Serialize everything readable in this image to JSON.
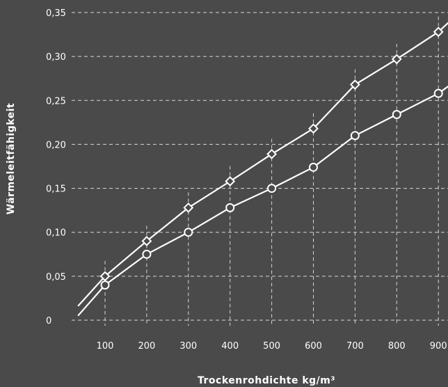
{
  "chart_data": {
    "type": "line",
    "title": "",
    "xlabel": "Trockenrohdichte kg/m³",
    "ylabel": "Wärmeleitfähigkeit",
    "x_ticks": [
      {
        "value": 100,
        "label": "100"
      },
      {
        "value": 200,
        "label": "200"
      },
      {
        "value": 300,
        "label": "300"
      },
      {
        "value": 400,
        "label": "400"
      },
      {
        "value": 500,
        "label": "500"
      },
      {
        "value": 600,
        "label": "600"
      },
      {
        "value": 700,
        "label": "700"
      },
      {
        "value": 800,
        "label": "800"
      },
      {
        "value": 900,
        "label": "900"
      }
    ],
    "y_ticks": [
      {
        "value": 0,
        "label": "0"
      },
      {
        "value": 0.05,
        "label": "0,05"
      },
      {
        "value": 0.1,
        "label": "0,10"
      },
      {
        "value": 0.15,
        "label": "0,15"
      },
      {
        "value": 0.2,
        "label": "0,20"
      },
      {
        "value": 0.25,
        "label": "0,25"
      },
      {
        "value": 0.3,
        "label": "0,30"
      },
      {
        "value": 0.35,
        "label": "0,35"
      }
    ],
    "ylim": [
      0,
      0.35
    ],
    "grid": true,
    "legend": "none",
    "colors": {
      "background": "#4a4a4b",
      "line": "#ffffff",
      "grid": "#d8d8d8",
      "marker_fill": "#4a4a4b"
    },
    "series": [
      {
        "marker": "diamond",
        "x": [
          100,
          200,
          300,
          400,
          500,
          600,
          700,
          800,
          900
        ],
        "values": [
          0.05,
          0.09,
          0.128,
          0.158,
          0.189,
          0.218,
          0.268,
          0.297,
          0.328
        ],
        "line_start": {
          "x": 35,
          "value": 0.016
        },
        "line_end": {
          "x": 950,
          "value": 0.35
        }
      },
      {
        "marker": "circle",
        "x": [
          100,
          200,
          300,
          400,
          500,
          600,
          700,
          800,
          900
        ],
        "values": [
          0.04,
          0.075,
          0.1,
          0.128,
          0.15,
          0.174,
          0.21,
          0.234,
          0.258
        ],
        "line_start": {
          "x": 35,
          "value": 0.005
        },
        "line_end": {
          "x": 950,
          "value": 0.275
        }
      }
    ]
  }
}
